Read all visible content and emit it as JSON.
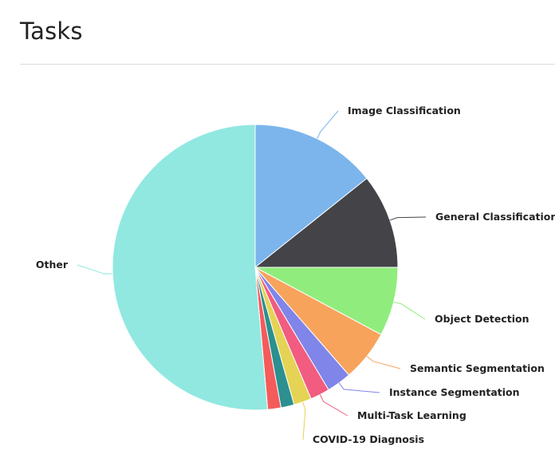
{
  "header": {
    "title": "Tasks"
  },
  "chart_data": {
    "type": "pie",
    "title": "",
    "unit": "percent",
    "slices": [
      {
        "label": "Image Classification",
        "value": 14.3,
        "color": "#7cb5ec"
      },
      {
        "label": "General Classification",
        "value": 10.7,
        "color": "#434348"
      },
      {
        "label": "Object Detection",
        "value": 7.8,
        "color": "#90ed7d"
      },
      {
        "label": "Semantic Segmentation",
        "value": 5.8,
        "color": "#f7a35c"
      },
      {
        "label": "Instance Segmentation",
        "value": 2.8,
        "color": "#8085e9"
      },
      {
        "label": "Multi-Task Learning",
        "value": 2.2,
        "color": "#f15c80"
      },
      {
        "label": "COVID-19 Diagnosis",
        "value": 2.0,
        "color": "#e4d354"
      },
      {
        "label": "",
        "value": 1.5,
        "color": "#2b908f"
      },
      {
        "label": "",
        "value": 1.5,
        "color": "#f45b5b"
      },
      {
        "label": "Other",
        "value": 51.4,
        "color": "#91e8e1"
      }
    ]
  }
}
